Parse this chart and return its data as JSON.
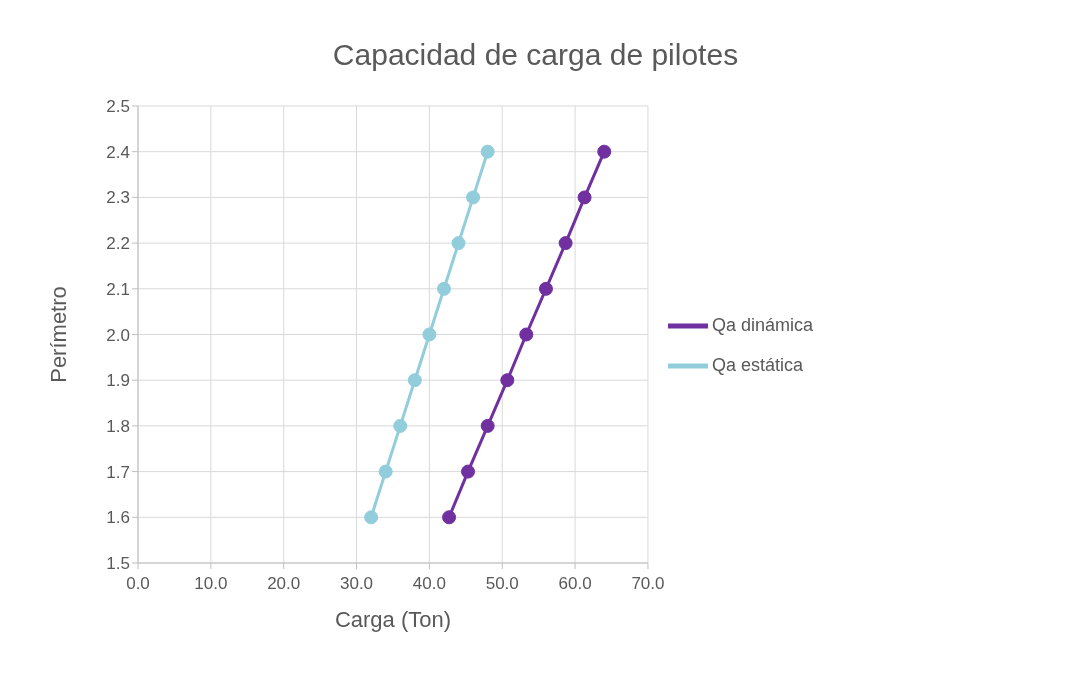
{
  "chart_data": {
    "type": "line",
    "title": "Capacidad de carga de pilotes",
    "xlabel": "Carga (Ton)",
    "ylabel": "Perímetro",
    "series": [
      {
        "name": "Qa estática",
        "color": "#92cddc",
        "x": [
          32,
          34,
          36,
          38,
          40,
          42,
          44,
          46,
          48
        ],
        "values": [
          1.6,
          1.7,
          1.8,
          1.9,
          2.0,
          2.1,
          2.2,
          2.3,
          2.4
        ]
      },
      {
        "name": "Qa dinámica",
        "color": "#7030a0",
        "x": [
          42.7,
          45.3,
          48,
          50.7,
          53.3,
          56,
          58.7,
          61.3,
          64
        ],
        "values": [
          1.6,
          1.7,
          1.8,
          1.9,
          2.0,
          2.1,
          2.2,
          2.3,
          2.4
        ]
      }
    ],
    "xlim": [
      0,
      70
    ],
    "xticks": [
      {
        "value": 0,
        "label": "0.0"
      },
      {
        "value": 10,
        "label": "10.0"
      },
      {
        "value": 20,
        "label": "20.0"
      },
      {
        "value": 30,
        "label": "30.0"
      },
      {
        "value": 40,
        "label": "40.0"
      },
      {
        "value": 50,
        "label": "50.0"
      },
      {
        "value": 60,
        "label": "60.0"
      },
      {
        "value": 70,
        "label": "70.0"
      }
    ],
    "ylim": [
      1.5,
      2.5
    ],
    "yticks": [
      {
        "value": 1.5,
        "label": "1.5"
      },
      {
        "value": 1.6,
        "label": "1.6"
      },
      {
        "value": 1.7,
        "label": "1.7"
      },
      {
        "value": 1.8,
        "label": "1.8"
      },
      {
        "value": 1.9,
        "label": "1.9"
      },
      {
        "value": 2.0,
        "label": "2.0"
      },
      {
        "value": 2.1,
        "label": "2.1"
      },
      {
        "value": 2.2,
        "label": "2.2"
      },
      {
        "value": 2.3,
        "label": "2.3"
      },
      {
        "value": 2.4,
        "label": "2.4"
      },
      {
        "value": 2.5,
        "label": "2.5"
      }
    ],
    "grid": true,
    "legend": "right",
    "marker": "circle",
    "line_style": "solid"
  }
}
